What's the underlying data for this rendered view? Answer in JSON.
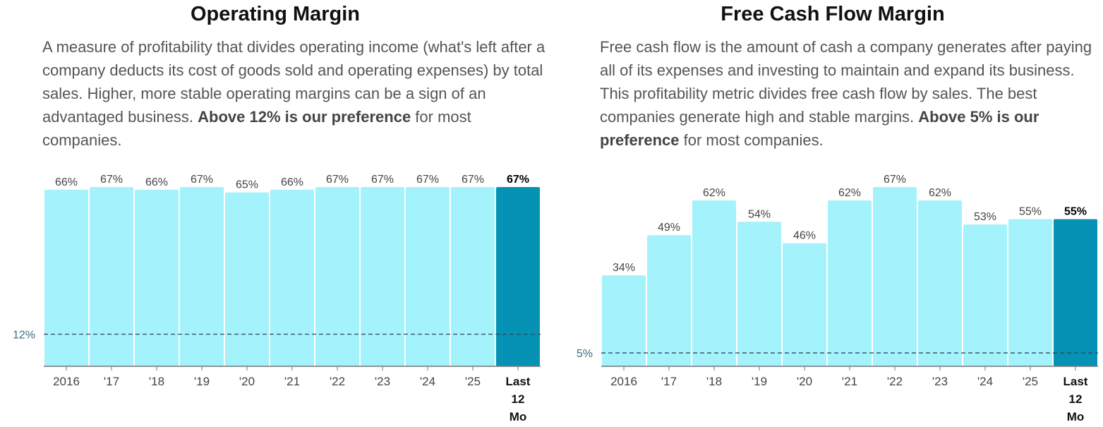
{
  "chart_data": [
    {
      "type": "bar",
      "title": "Operating Margin",
      "description": {
        "text": "A measure of profitability that divides operating income (what's left after a company deducts its cost of goods sold and operating expenses) by total sales. Higher, more stable operating margins can be a sign of an advantaged business. ",
        "bold": "Above 12% is our preference",
        "tail": " for most companies."
      },
      "categories": [
        "2016",
        "'17",
        "'18",
        "'19",
        "'20",
        "'21",
        "'22",
        "'23",
        "'24",
        "'25",
        "Last 12 Mo"
      ],
      "values": [
        66,
        67,
        66,
        67,
        65,
        66,
        67,
        67,
        67,
        67,
        67
      ],
      "value_labels": [
        "66%",
        "67%",
        "66%",
        "67%",
        "65%",
        "66%",
        "67%",
        "67%",
        "67%",
        "67%",
        "67%"
      ],
      "highlight_index": 10,
      "reference_line": {
        "value": 12,
        "label": "12%"
      },
      "ylim": [
        0,
        67
      ],
      "colors": {
        "bar": "#a4f2fb",
        "highlight": "#0692b4"
      }
    },
    {
      "type": "bar",
      "title": "Free Cash Flow Margin",
      "description": {
        "text": "Free cash flow is the amount of cash a company generates after paying all of its expenses and investing to maintain and expand its business. This profitability metric divides free cash flow by sales. The best companies generate high and stable margins. ",
        "bold": "Above 5% is our preference",
        "tail": " for most companies."
      },
      "categories": [
        "2016",
        "'17",
        "'18",
        "'19",
        "'20",
        "'21",
        "'22",
        "'23",
        "'24",
        "'25",
        "Last 12 Mo"
      ],
      "values": [
        34,
        49,
        62,
        54,
        46,
        62,
        67,
        62,
        53,
        55,
        55
      ],
      "value_labels": [
        "34%",
        "49%",
        "62%",
        "54%",
        "46%",
        "62%",
        "67%",
        "62%",
        "53%",
        "55%",
        "55%"
      ],
      "highlight_index": 10,
      "reference_line": {
        "value": 5,
        "label": "5%"
      },
      "ylim": [
        0,
        67
      ],
      "colors": {
        "bar": "#a4f2fb",
        "highlight": "#0692b4"
      }
    }
  ]
}
